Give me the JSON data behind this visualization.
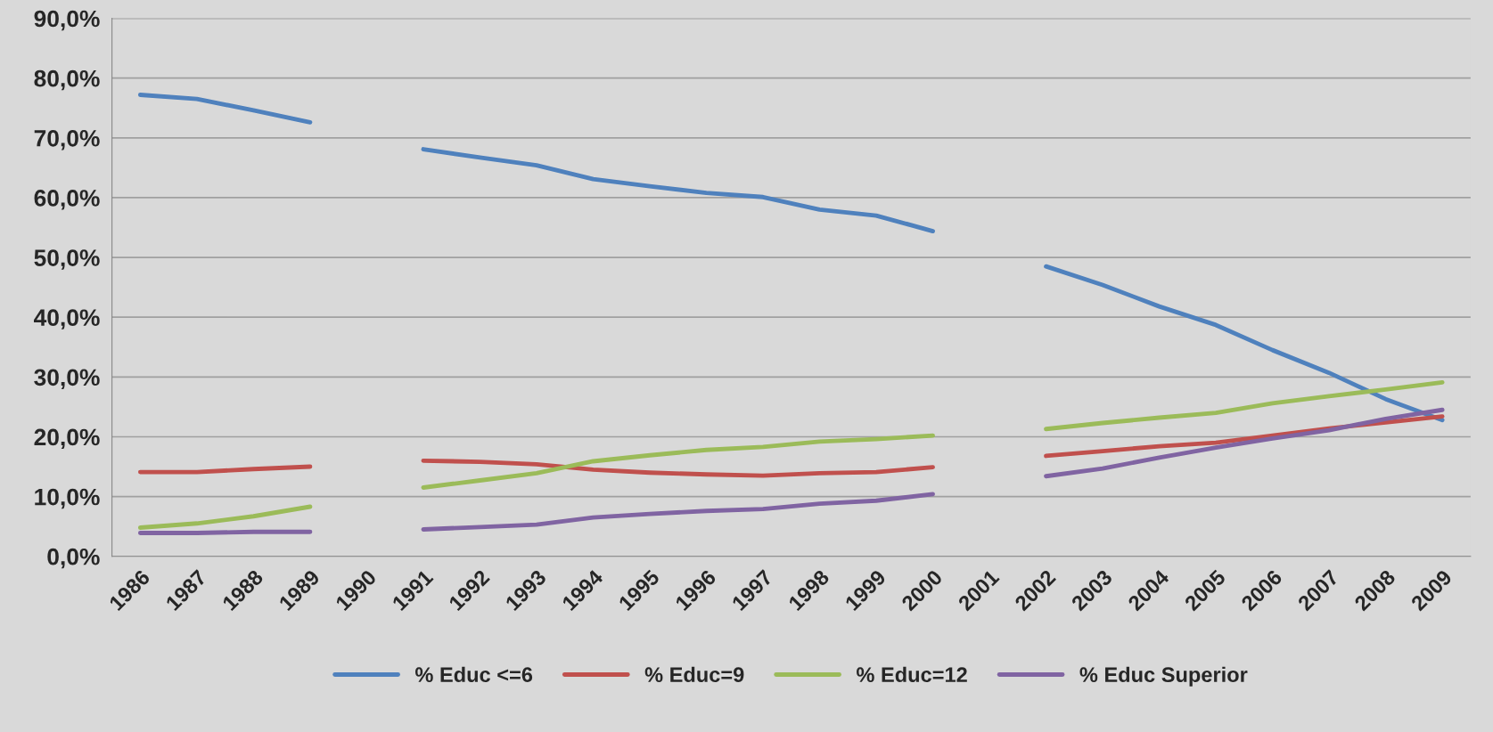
{
  "chart_data": {
    "type": "line",
    "categories": [
      "1986",
      "1987",
      "1988",
      "1989",
      "1990",
      "1991",
      "1992",
      "1993",
      "1994",
      "1995",
      "1996",
      "1997",
      "1998",
      "1999",
      "2000",
      "2001",
      "2002",
      "2003",
      "2004",
      "2005",
      "2006",
      "2007",
      "2008",
      "2009"
    ],
    "series": [
      {
        "name": "% Educ <=6",
        "color": "#4f81bd",
        "values": [
          77.2,
          76.5,
          74.6,
          72.6,
          null,
          68.1,
          66.7,
          65.4,
          63.1,
          61.9,
          60.8,
          60.1,
          58.0,
          57.0,
          54.4,
          null,
          48.5,
          45.4,
          41.8,
          38.7,
          34.5,
          30.7,
          26.3,
          22.8
        ]
      },
      {
        "name": "% Educ=9",
        "color": "#c0504d",
        "values": [
          14.1,
          14.1,
          14.6,
          15.0,
          null,
          16.0,
          15.8,
          15.4,
          14.5,
          14.0,
          13.7,
          13.5,
          13.9,
          14.1,
          14.9,
          null,
          16.8,
          17.6,
          18.4,
          19.0,
          20.2,
          21.4,
          22.4,
          23.4
        ]
      },
      {
        "name": "% Educ=12",
        "color": "#9bbb59",
        "values": [
          4.8,
          5.5,
          6.7,
          8.3,
          null,
          11.5,
          12.7,
          13.9,
          15.9,
          16.9,
          17.8,
          18.3,
          19.2,
          19.6,
          20.2,
          null,
          21.3,
          22.3,
          23.2,
          24.0,
          25.6,
          26.8,
          27.9,
          29.1
        ]
      },
      {
        "name": "% Educ Superior",
        "color": "#8064a2",
        "values": [
          3.9,
          3.9,
          4.1,
          4.1,
          null,
          4.5,
          4.9,
          5.3,
          6.5,
          7.1,
          7.6,
          7.9,
          8.8,
          9.3,
          10.4,
          null,
          13.4,
          14.7,
          16.5,
          18.2,
          19.7,
          21.1,
          23.0,
          24.5
        ]
      }
    ],
    "ylim": [
      0,
      90
    ],
    "yticks": [
      {
        "value": 0,
        "label": "0,0%"
      },
      {
        "value": 10,
        "label": "10,0%"
      },
      {
        "value": 20,
        "label": "20,0%"
      },
      {
        "value": 30,
        "label": "30,0%"
      },
      {
        "value": 40,
        "label": "40,0%"
      },
      {
        "value": 50,
        "label": "50,0%"
      },
      {
        "value": 60,
        "label": "60,0%"
      },
      {
        "value": 70,
        "label": "70,0%"
      },
      {
        "value": 80,
        "label": "80,0%"
      },
      {
        "value": 90,
        "label": "90,0%"
      }
    ],
    "grid": "y",
    "legend": "bottom",
    "marker": "none",
    "line_style": "solid"
  }
}
